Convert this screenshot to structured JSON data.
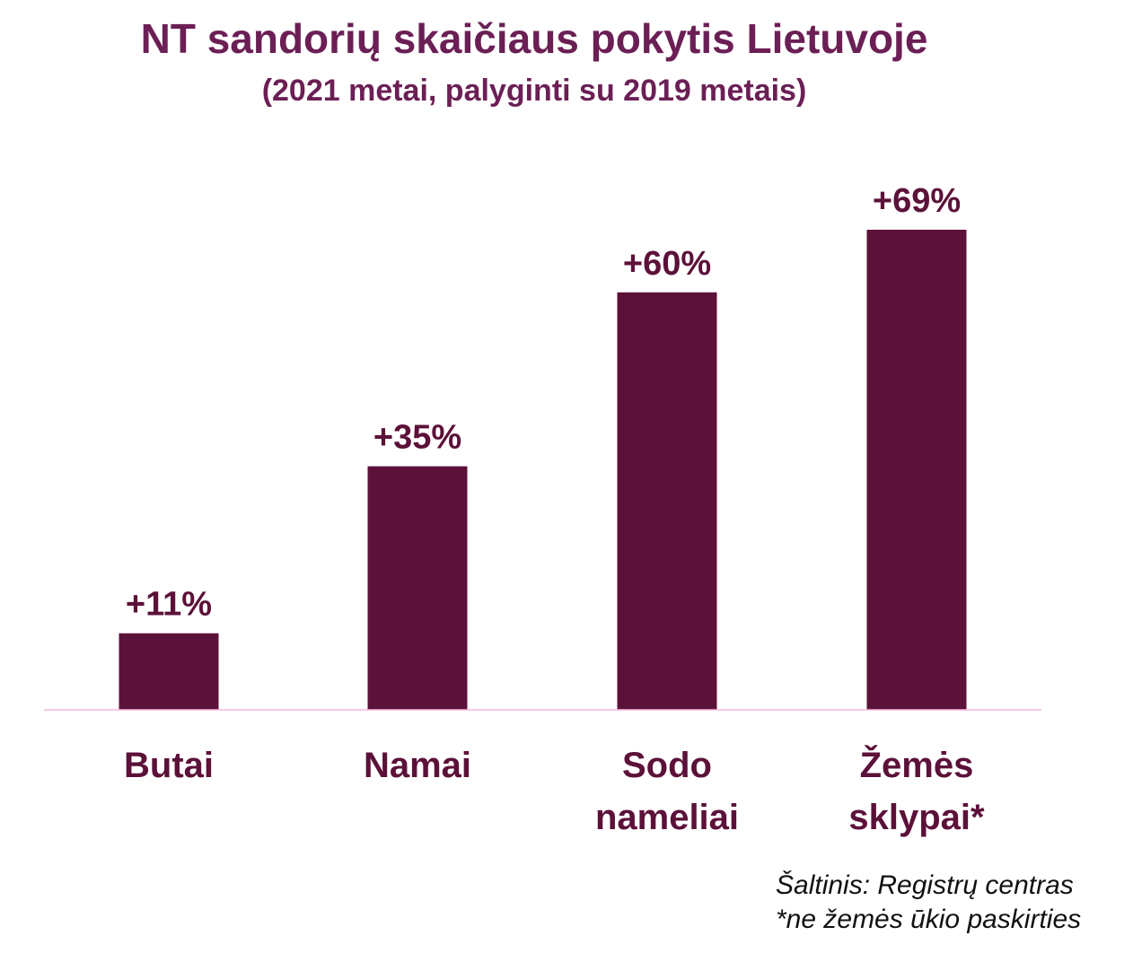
{
  "chart_data": {
    "type": "bar",
    "title": "NT sandorių skaičiaus pokytis Lietuvoje",
    "subtitle": "(2021 metai, palyginti su 2019 metais)",
    "categories": [
      [
        "Butai"
      ],
      [
        "Namai"
      ],
      [
        "Sodo",
        "nameliai"
      ],
      [
        "Žemės",
        "sklypai*"
      ]
    ],
    "values": [
      11,
      35,
      60,
      69
    ],
    "data_labels": [
      "+11%",
      "+35%",
      "+60%",
      "+69%"
    ],
    "unit": "%",
    "ylim": [
      0,
      69
    ],
    "grid": false,
    "legend": "none",
    "bar_color": "#5c1139",
    "label_color": "#5c1139",
    "title_color": "#6b1f55",
    "baseline_color": "#f4b8df"
  },
  "footer": {
    "source": "Šaltinis: Registrų centras",
    "note": "*ne žemės ūkio paskirties"
  }
}
